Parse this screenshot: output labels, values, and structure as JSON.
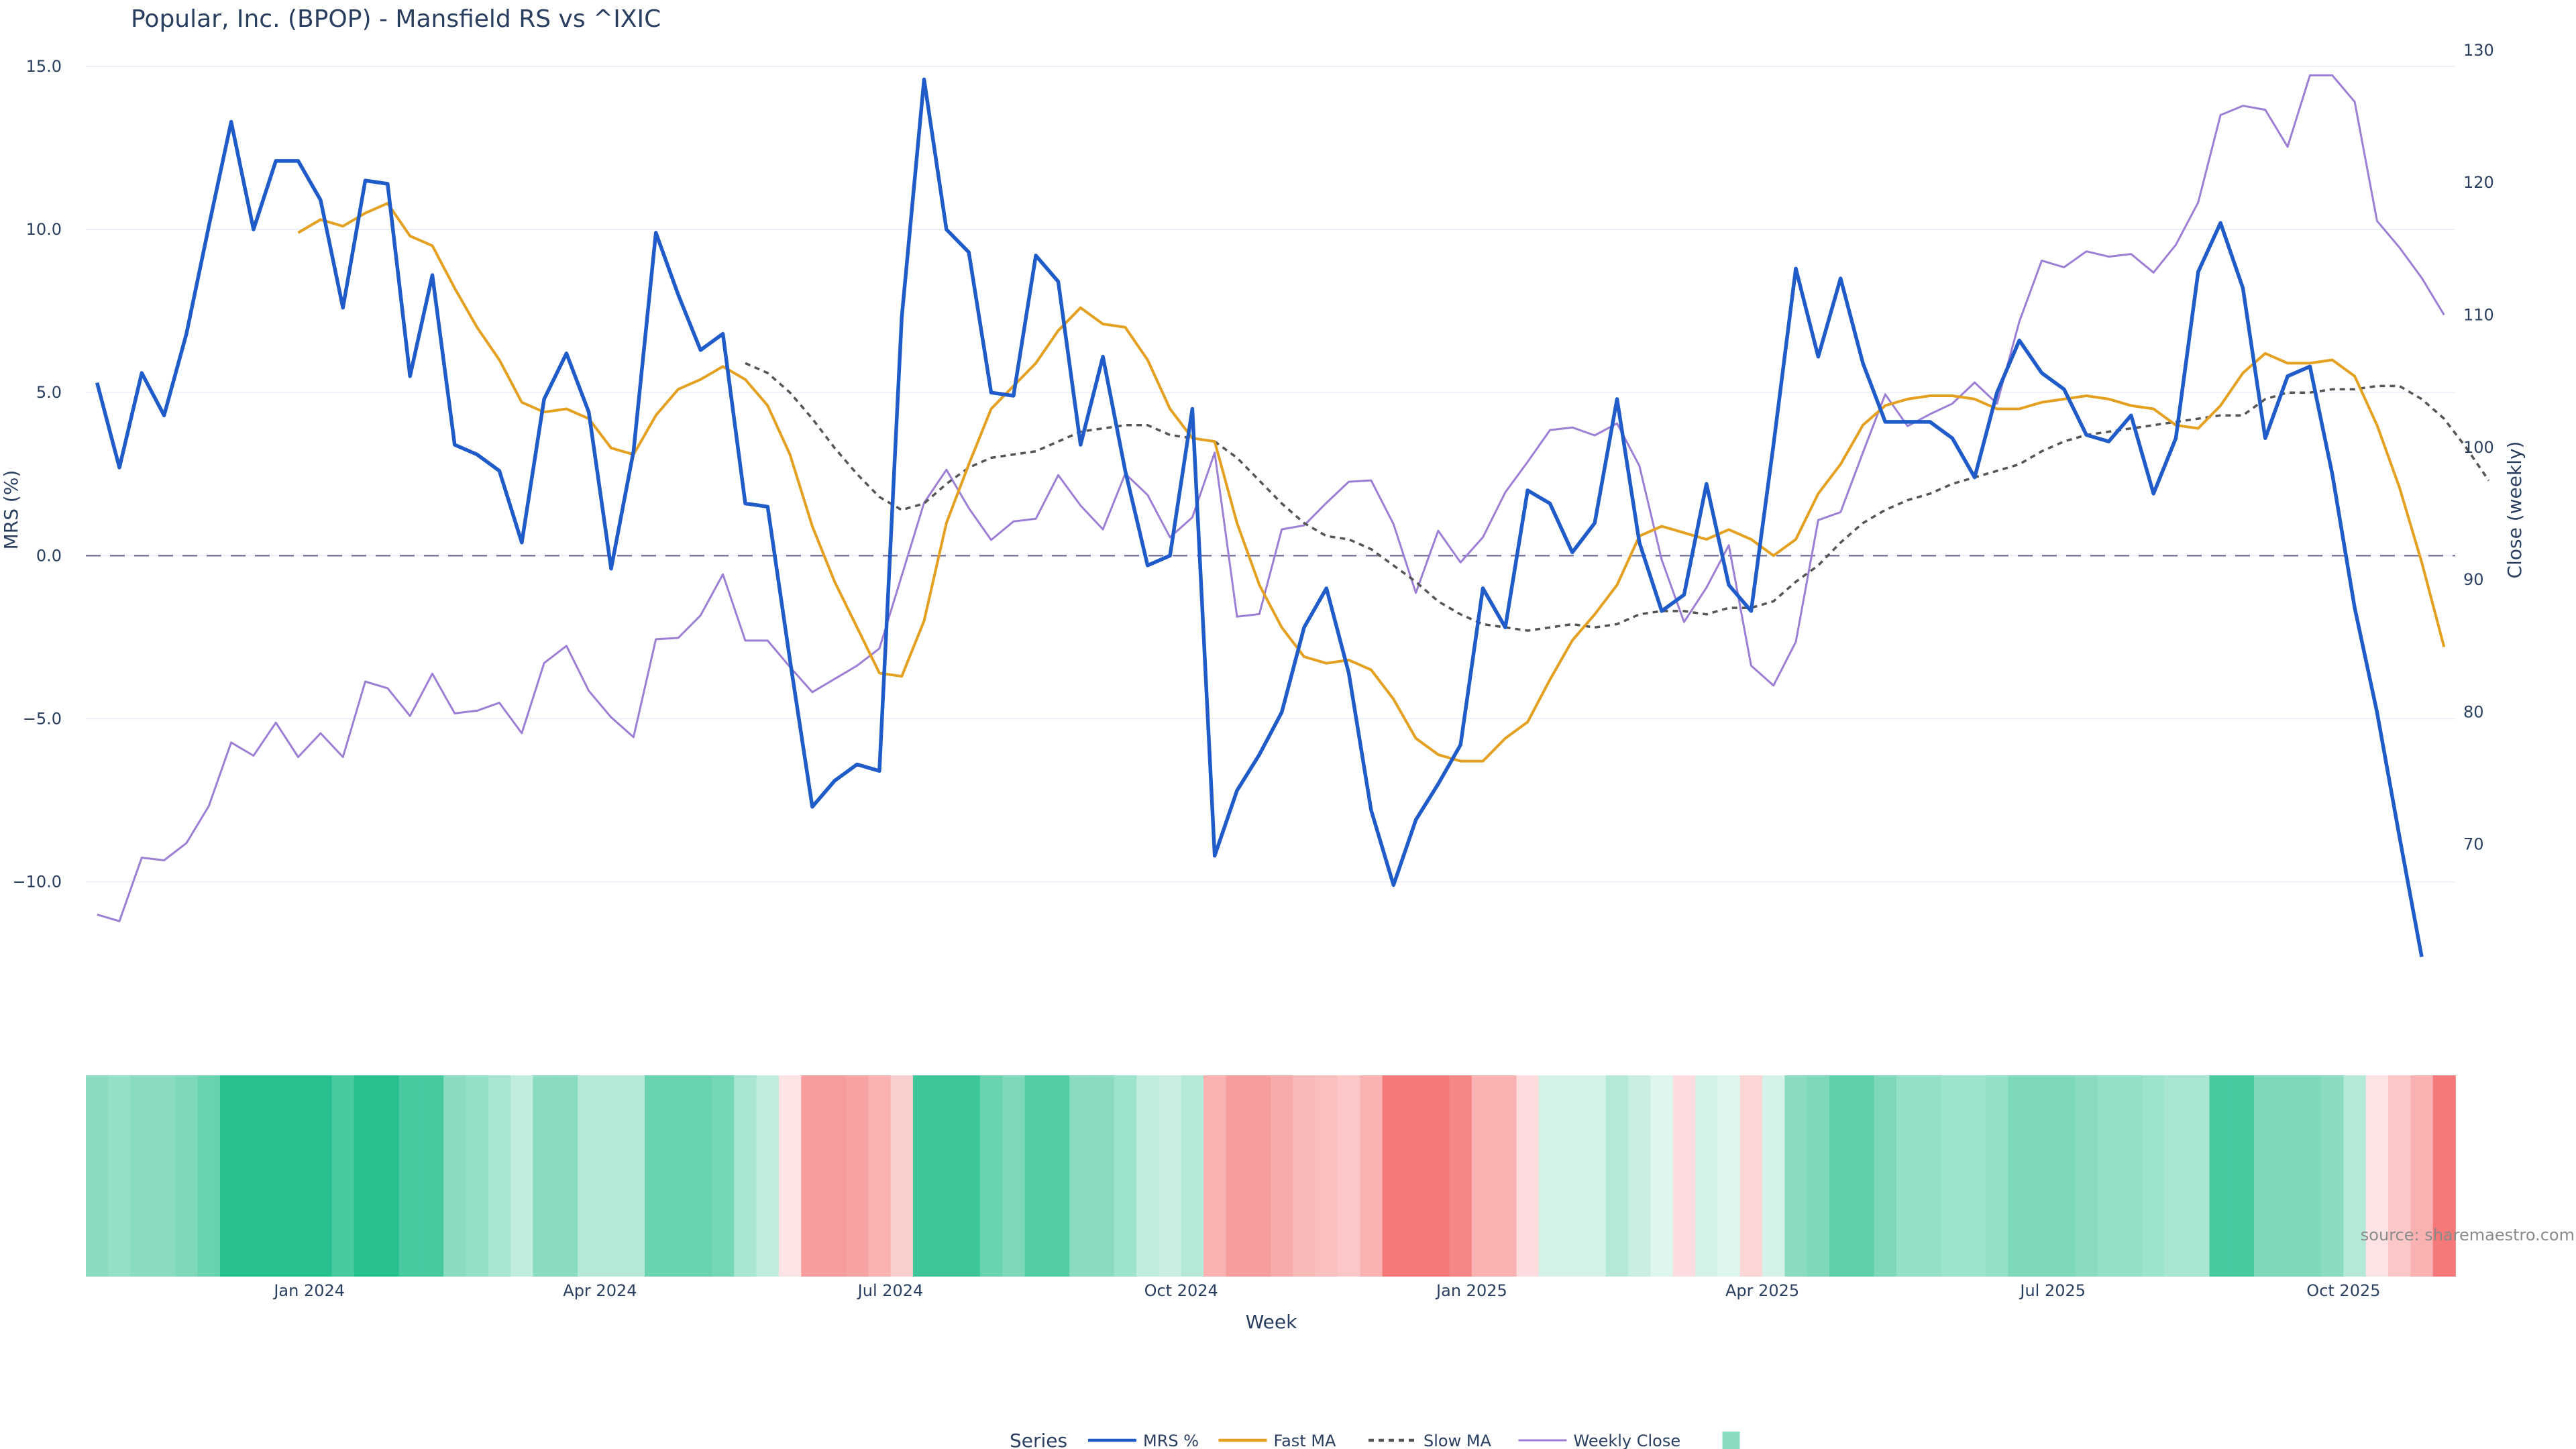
{
  "chart_data": {
    "type": "line",
    "title": "Popular, Inc. (BPOP) - Mansfield RS vs ^IXIC",
    "xlabel": "Week",
    "ylabel": "MRS (%)",
    "y2label": "Close (weekly)",
    "ylim": [
      -13.3,
      15.8
    ],
    "y2lim": [
      59.04,
      130.75
    ],
    "yticks": [
      -10.0,
      -5.0,
      0.0,
      5.0,
      10.0,
      15.0
    ],
    "ytick_labels": [
      "−10.0",
      "−5.0",
      "0.0",
      "5.0",
      "10.0",
      "15.0"
    ],
    "y2ticks": [
      70,
      80,
      90,
      100,
      110,
      120,
      130
    ],
    "xtick_labels": [
      "Jan 2024",
      "Apr 2024",
      "Jul 2024",
      "Oct 2024",
      "Jan 2025",
      "Apr 2025",
      "Jul 2025",
      "Oct 2025"
    ],
    "xtick_weeks": [
      9.5,
      22.5,
      35.5,
      48.5,
      61.5,
      74.5,
      87.5,
      100.5
    ],
    "x_range": [
      -0.5,
      105.5
    ],
    "zero_line": 0,
    "grid": true,
    "legend_title": "Series",
    "legend_position": "bottom-center",
    "source": "source: sharemaestro.com",
    "series": [
      {
        "name": "MRS %",
        "color": "#1f5bc9",
        "axis": "left",
        "start": 0,
        "values": [
          5.3,
          2.7,
          5.6,
          4.3,
          6.8,
          10.1,
          13.3,
          10.0,
          12.1,
          12.1,
          10.9,
          7.6,
          11.5,
          11.4,
          5.5,
          8.6,
          3.4,
          3.1,
          2.6,
          0.4,
          4.8,
          6.2,
          4.4,
          -0.4,
          3.2,
          9.9,
          8.0,
          6.3,
          6.8,
          1.6,
          1.5,
          -3.2,
          -7.7,
          -6.9,
          -6.4,
          -6.6,
          7.3,
          14.6,
          10.0,
          9.3,
          5.0,
          4.9,
          9.2,
          8.4,
          3.4,
          6.1,
          2.6,
          -0.3,
          0.0,
          4.5,
          -9.2,
          -7.2,
          -6.1,
          -4.8,
          -2.2,
          -1.0,
          -3.6,
          -7.8,
          -10.1,
          -8.1,
          -7.0,
          -5.8,
          -1.0,
          -2.2,
          2.0,
          1.6,
          0.1,
          1.0,
          4.8,
          0.4,
          -1.7,
          -1.2,
          2.2,
          -0.9,
          -1.7,
          3.4,
          8.8,
          6.1,
          8.5,
          5.9,
          4.1,
          4.1,
          4.1,
          3.6,
          2.4,
          5.0,
          6.6,
          5.6,
          5.1,
          3.7,
          3.5,
          4.3,
          1.9,
          3.6,
          8.7,
          10.2,
          8.2,
          3.6,
          5.5,
          5.8,
          2.5,
          -1.6,
          -4.8,
          -8.6,
          -12.3
        ]
      },
      {
        "name": "Fast MA",
        "color": "#e4a020",
        "axis": "left",
        "start": 9,
        "values": [
          9.9,
          10.3,
          10.1,
          10.5,
          10.8,
          9.8,
          9.5,
          8.2,
          7.0,
          6.0,
          4.7,
          4.4,
          4.5,
          4.2,
          3.3,
          3.1,
          4.3,
          5.1,
          5.4,
          5.8,
          5.4,
          4.6,
          3.1,
          0.9,
          -0.8,
          -2.2,
          -3.6,
          -3.7,
          -2.0,
          1.0,
          2.8,
          4.5,
          5.2,
          5.9,
          6.9,
          7.6,
          7.1,
          7.0,
          6.0,
          4.5,
          3.6,
          3.5,
          1.0,
          -0.9,
          -2.2,
          -3.1,
          -3.3,
          -3.2,
          -3.5,
          -4.4,
          -5.6,
          -6.1,
          -6.3,
          -6.3,
          -5.6,
          -5.1,
          -3.8,
          -2.6,
          -1.8,
          -0.9,
          0.6,
          0.9,
          0.7,
          0.5,
          0.8,
          0.5,
          0.0,
          0.5,
          1.9,
          2.8,
          4.0,
          4.6,
          4.8,
          4.9,
          4.9,
          4.8,
          4.5,
          4.5,
          4.7,
          4.8,
          4.9,
          4.8,
          4.6,
          4.5,
          4.0,
          3.9,
          4.6,
          5.6,
          6.2,
          5.9,
          5.9,
          6.0,
          5.5,
          4.0,
          2.1,
          -0.2,
          -2.8
        ]
      },
      {
        "name": "Slow MA",
        "color": "#555555",
        "axis": "left",
        "dash": true,
        "start": 29,
        "values": [
          5.9,
          5.6,
          5.0,
          4.2,
          3.3,
          2.5,
          1.8,
          1.4,
          1.6,
          2.2,
          2.7,
          3.0,
          3.1,
          3.2,
          3.5,
          3.8,
          3.9,
          4.0,
          4.0,
          3.7,
          3.6,
          3.5,
          3.0,
          2.3,
          1.6,
          1.0,
          0.6,
          0.5,
          0.2,
          -0.3,
          -0.8,
          -1.4,
          -1.8,
          -2.1,
          -2.2,
          -2.3,
          -2.2,
          -2.1,
          -2.2,
          -2.1,
          -1.8,
          -1.7,
          -1.7,
          -1.8,
          -1.6,
          -1.6,
          -1.4,
          -0.8,
          -0.3,
          0.4,
          1.0,
          1.4,
          1.7,
          1.9,
          2.2,
          2.4,
          2.6,
          2.8,
          3.2,
          3.5,
          3.7,
          3.8,
          3.9,
          4.0,
          4.1,
          4.2,
          4.3,
          4.3,
          4.8,
          5.0,
          5.0,
          5.1,
          5.1,
          5.2,
          5.2,
          4.8,
          4.2,
          3.3,
          2.3
        ]
      },
      {
        "name": "Weekly Close",
        "color": "#9c7fd4",
        "axis": "right",
        "start": 0,
        "values": [
          64.7,
          64.2,
          69.0,
          68.8,
          70.1,
          72.9,
          77.7,
          76.7,
          79.2,
          76.6,
          78.4,
          76.6,
          82.3,
          81.8,
          79.7,
          82.9,
          79.9,
          80.1,
          80.7,
          78.4,
          83.7,
          85.0,
          81.6,
          79.6,
          78.1,
          85.5,
          85.6,
          87.3,
          90.4,
          85.4,
          85.4,
          83.4,
          81.5,
          82.5,
          83.5,
          84.8,
          90.3,
          95.8,
          98.3,
          95.4,
          93.0,
          94.4,
          94.6,
          97.9,
          95.6,
          93.8,
          98.0,
          96.4,
          93.2,
          94.7,
          99.6,
          87.2,
          87.4,
          93.8,
          94.1,
          95.8,
          97.4,
          97.5,
          94.2,
          89.0,
          93.7,
          91.3,
          93.2,
          96.6,
          98.9,
          101.3,
          101.5,
          100.9,
          101.8,
          98.6,
          91.5,
          86.8,
          89.4,
          92.6,
          83.5,
          82.0,
          85.3,
          94.5,
          95.1,
          99.6,
          104.0,
          101.6,
          102.5,
          103.3,
          104.9,
          103.3,
          109.5,
          114.1,
          113.6,
          114.8,
          114.4,
          114.6,
          113.2,
          115.3,
          118.5,
          125.1,
          125.8,
          125.5,
          122.7,
          128.1,
          128.1,
          126.1,
          117.1,
          115.1,
          112.8,
          110.0
        ]
      }
    ],
    "heatmap": {
      "colorscale": [
        [
          "#f47272",
          -1
        ],
        [
          "#ffffff",
          0
        ],
        [
          "#28c08f",
          1
        ]
      ],
      "weeks_start": 0,
      "values": [
        0.55,
        0.5,
        0.55,
        0.55,
        0.6,
        0.7,
        1.0,
        1.0,
        1.0,
        1.0,
        1.0,
        0.85,
        1.0,
        1.0,
        0.85,
        0.85,
        0.55,
        0.5,
        0.4,
        0.3,
        0.55,
        0.55,
        0.35,
        0.35,
        0.35,
        0.7,
        0.7,
        0.7,
        0.65,
        0.4,
        0.3,
        -0.2,
        -0.7,
        -0.7,
        -0.65,
        -0.55,
        -0.35,
        0.9,
        0.9,
        0.9,
        0.7,
        0.6,
        0.8,
        0.8,
        0.55,
        0.55,
        0.45,
        0.3,
        0.25,
        0.35,
        -0.55,
        -0.7,
        -0.7,
        -0.6,
        -0.5,
        -0.45,
        -0.4,
        -0.55,
        -0.95,
        -0.95,
        -0.95,
        -0.85,
        -0.55,
        -0.55,
        -0.25,
        0.2,
        0.2,
        0.2,
        0.35,
        0.25,
        0.15,
        -0.25,
        0.2,
        0.15,
        -0.3,
        0.2,
        0.55,
        0.6,
        0.75,
        0.75,
        0.6,
        0.5,
        0.5,
        0.45,
        0.45,
        0.5,
        0.6,
        0.6,
        0.6,
        0.55,
        0.5,
        0.5,
        0.45,
        0.4,
        0.4,
        0.85,
        0.85,
        0.6,
        0.6,
        0.6,
        0.55,
        0.35,
        -0.2,
        -0.4,
        -0.55,
        -0.95
      ]
    }
  }
}
